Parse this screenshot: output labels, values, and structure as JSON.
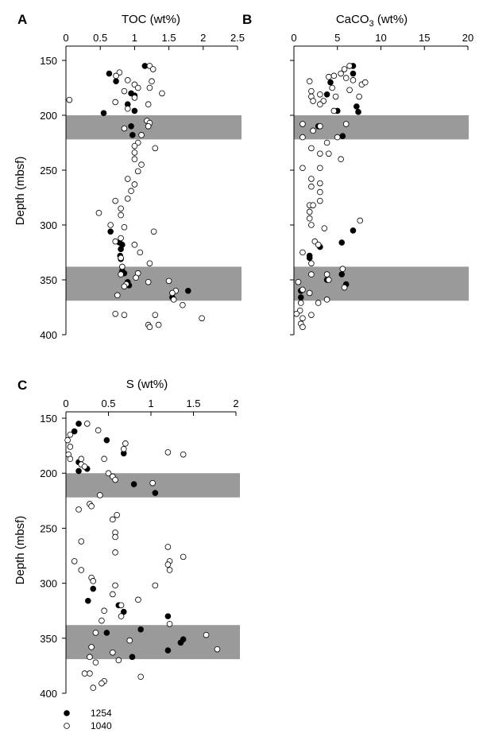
{
  "colors": {
    "band": "#9a9a9a",
    "axis": "#000000",
    "filled": "#000000",
    "open_fill": "#ffffff"
  },
  "legend": [
    {
      "label": "1254",
      "marker": "filled"
    },
    {
      "label": "1040",
      "marker": "open"
    }
  ],
  "chart_data": [
    {
      "panel": "A",
      "type": "scatter",
      "title": "TOC (wt%)",
      "xlabel": "TOC (wt%)",
      "ylabel": "Depth (mbsf)",
      "xlim": [
        0,
        2.5
      ],
      "ylim": [
        150,
        400
      ],
      "y_inverted": true,
      "x_axis_position": "top",
      "xticks": [
        "0",
        "0.5",
        "1",
        "1.5",
        "2",
        "2.5"
      ],
      "yticks": [
        "150",
        "200",
        "250",
        "300",
        "350",
        "400"
      ],
      "bands": [
        [
          200,
          222
        ],
        [
          338,
          369
        ]
      ],
      "series": [
        {
          "name": "1254",
          "marker": "filled",
          "points": [
            [
              1.15,
              155
            ],
            [
              0.63,
              162
            ],
            [
              0.73,
              169
            ],
            [
              0.95,
              180
            ],
            [
              1.0,
              182
            ],
            [
              0.9,
              190
            ],
            [
              1.0,
              196
            ],
            [
              0.55,
              198
            ],
            [
              0.95,
              210
            ],
            [
              0.97,
              218
            ],
            [
              0.65,
              306
            ],
            [
              0.78,
              316
            ],
            [
              0.82,
              318
            ],
            [
              0.8,
              322
            ],
            [
              0.79,
              328
            ],
            [
              0.8,
              331
            ],
            [
              0.82,
              342
            ],
            [
              0.85,
              344
            ],
            [
              0.9,
              352
            ],
            [
              0.92,
              355
            ],
            [
              1.78,
              360
            ],
            [
              1.55,
              366
            ]
          ]
        },
        {
          "name": "1040",
          "marker": "open",
          "points": [
            [
              1.22,
              155
            ],
            [
              1.27,
              158
            ],
            [
              0.78,
              161
            ],
            [
              0.73,
              164
            ],
            [
              0.9,
              168
            ],
            [
              1.25,
              169
            ],
            [
              1.0,
              172
            ],
            [
              1.05,
              175
            ],
            [
              1.22,
              175
            ],
            [
              0.85,
              178
            ],
            [
              1.4,
              180
            ],
            [
              1.0,
              184
            ],
            [
              0.05,
              186
            ],
            [
              0.72,
              188
            ],
            [
              1.2,
              190
            ],
            [
              0.9,
              194
            ],
            [
              1.18,
              205
            ],
            [
              1.22,
              207
            ],
            [
              1.2,
              210
            ],
            [
              0.85,
              212
            ],
            [
              1.1,
              218
            ],
            [
              1.05,
              225
            ],
            [
              1.0,
              228
            ],
            [
              1.3,
              230
            ],
            [
              1.0,
              234
            ],
            [
              1.0,
              240
            ],
            [
              1.1,
              245
            ],
            [
              1.05,
              251
            ],
            [
              0.9,
              258
            ],
            [
              1.0,
              263
            ],
            [
              0.95,
              269
            ],
            [
              0.9,
              276
            ],
            [
              0.72,
              278
            ],
            [
              0.8,
              285
            ],
            [
              0.48,
              289
            ],
            [
              0.8,
              291
            ],
            [
              0.65,
              300
            ],
            [
              0.85,
              302
            ],
            [
              1.28,
              306
            ],
            [
              0.8,
              312
            ],
            [
              0.72,
              315
            ],
            [
              1.0,
              318
            ],
            [
              1.08,
              325
            ],
            [
              0.8,
              330
            ],
            [
              1.22,
              335
            ],
            [
              0.82,
              338
            ],
            [
              1.05,
              344
            ],
            [
              0.8,
              345
            ],
            [
              1.02,
              348
            ],
            [
              1.5,
              351
            ],
            [
              1.2,
              352
            ],
            [
              0.88,
              354
            ],
            [
              0.85,
              356
            ],
            [
              1.6,
              360
            ],
            [
              1.55,
              362
            ],
            [
              0.75,
              364
            ],
            [
              1.57,
              368
            ],
            [
              1.7,
              373
            ],
            [
              0.72,
              381
            ],
            [
              0.85,
              382
            ],
            [
              1.3,
              382
            ],
            [
              1.98,
              385
            ],
            [
              1.2,
              391
            ],
            [
              1.22,
              393
            ],
            [
              1.35,
              391
            ]
          ]
        }
      ]
    },
    {
      "panel": "B",
      "type": "scatter",
      "title": "CaCO₃ (wt%)",
      "title_text": "CaCO",
      "title_subscript": "3",
      "title_suffix": " (wt%)",
      "xlabel": "CaCO₃ (wt%)",
      "ylabel": "",
      "xlim": [
        0,
        20
      ],
      "ylim": [
        150,
        400
      ],
      "y_inverted": true,
      "x_axis_position": "top",
      "xticks": [
        "0",
        "5",
        "10",
        "15",
        "20"
      ],
      "yticks": [],
      "bands": [
        [
          200,
          222
        ],
        [
          338,
          369
        ]
      ],
      "series": [
        {
          "name": "1254",
          "marker": "filled",
          "points": [
            [
              6.8,
              155
            ],
            [
              6.8,
              162
            ],
            [
              4.2,
              170
            ],
            [
              3.8,
              181
            ],
            [
              7.2,
              192
            ],
            [
              7.4,
              197
            ],
            [
              5.0,
              196
            ],
            [
              2.8,
              210
            ],
            [
              5.6,
              219
            ],
            [
              6.8,
              305
            ],
            [
              5.5,
              316
            ],
            [
              3.0,
              320
            ],
            [
              1.8,
              328
            ],
            [
              1.8,
              330
            ],
            [
              5.5,
              345
            ],
            [
              3.8,
              350
            ],
            [
              6.0,
              354
            ],
            [
              0.8,
              360
            ],
            [
              0.8,
              366
            ]
          ]
        },
        {
          "name": "1040",
          "marker": "open",
          "points": [
            [
              6.4,
              155
            ],
            [
              5.8,
              158
            ],
            [
              5.4,
              162
            ],
            [
              4.6,
              164
            ],
            [
              6.0,
              166
            ],
            [
              1.8,
              169
            ],
            [
              4.0,
              165
            ],
            [
              6.8,
              168
            ],
            [
              7.8,
              172
            ],
            [
              8.2,
              170
            ],
            [
              2.0,
              178
            ],
            [
              4.4,
              175
            ],
            [
              6.4,
              177
            ],
            [
              3.0,
              181
            ],
            [
              2.0,
              183
            ],
            [
              4.8,
              183
            ],
            [
              7.5,
              183
            ],
            [
              3.4,
              187
            ],
            [
              3.0,
              190
            ],
            [
              2.2,
              187
            ],
            [
              4.6,
              196
            ],
            [
              1.0,
              208
            ],
            [
              3.0,
              210
            ],
            [
              2.2,
              214
            ],
            [
              6.0,
              208
            ],
            [
              5.0,
              220
            ],
            [
              1.0,
              220
            ],
            [
              3.8,
              225
            ],
            [
              2.0,
              230
            ],
            [
              3.0,
              235
            ],
            [
              4.0,
              235
            ],
            [
              5.4,
              240
            ],
            [
              1.0,
              248
            ],
            [
              3.0,
              248
            ],
            [
              2.0,
              258
            ],
            [
              3.0,
              262
            ],
            [
              2.0,
              265
            ],
            [
              3.0,
              270
            ],
            [
              3.0,
              278
            ],
            [
              1.8,
              282
            ],
            [
              2.2,
              282
            ],
            [
              1.8,
              288
            ],
            [
              1.8,
              294
            ],
            [
              7.6,
              296
            ],
            [
              2.0,
              300
            ],
            [
              3.5,
              303
            ],
            [
              2.4,
              315
            ],
            [
              2.8,
              318
            ],
            [
              1.0,
              325
            ],
            [
              2.0,
              335
            ],
            [
              5.6,
              340
            ],
            [
              3.8,
              345
            ],
            [
              2.0,
              345
            ],
            [
              4.0,
              350
            ],
            [
              0.5,
              352
            ],
            [
              5.8,
              357
            ],
            [
              1.0,
              359
            ],
            [
              1.8,
              362
            ],
            [
              3.8,
              368
            ],
            [
              0.8,
              371
            ],
            [
              2.8,
              371
            ],
            [
              0.7,
              378
            ],
            [
              0.3,
              381
            ],
            [
              2.0,
              382
            ],
            [
              1.0,
              385
            ],
            [
              0.8,
              390
            ],
            [
              1.0,
              393
            ]
          ]
        }
      ]
    },
    {
      "panel": "C",
      "type": "scatter",
      "title": "S (wt%)",
      "xlabel": "S (wt%)",
      "ylabel": "Depth (mbsf)",
      "xlim": [
        0,
        2
      ],
      "ylim": [
        150,
        400
      ],
      "y_inverted": true,
      "x_axis_position": "top",
      "xticks": [
        "0",
        "0.5",
        "1",
        "1.5",
        "2"
      ],
      "yticks": [
        "150",
        "200",
        "250",
        "300",
        "350",
        "400"
      ],
      "bands": [
        [
          200,
          222
        ],
        [
          338,
          369
        ]
      ],
      "series": [
        {
          "name": "1254",
          "marker": "filled",
          "points": [
            [
              0.15,
              155
            ],
            [
              0.1,
              162
            ],
            [
              0.48,
              170
            ],
            [
              0.68,
              182
            ],
            [
              0.15,
              190
            ],
            [
              0.25,
              196
            ],
            [
              0.15,
              198
            ],
            [
              0.8,
              210
            ],
            [
              1.05,
              218
            ],
            [
              0.32,
              305
            ],
            [
              0.26,
              316
            ],
            [
              0.62,
              320
            ],
            [
              0.68,
              326
            ],
            [
              1.2,
              330
            ],
            [
              0.88,
              342
            ],
            [
              1.38,
              351
            ],
            [
              0.48,
              345
            ],
            [
              1.35,
              354
            ],
            [
              1.2,
              361
            ],
            [
              0.78,
              367
            ]
          ]
        },
        {
          "name": "1040",
          "marker": "open",
          "points": [
            [
              0.25,
              155
            ],
            [
              0.38,
              161
            ],
            [
              0.05,
              165
            ],
            [
              0.02,
              170
            ],
            [
              0.7,
              173
            ],
            [
              0.05,
              176
            ],
            [
              0.68,
              178
            ],
            [
              1.2,
              181
            ],
            [
              1.38,
              183
            ],
            [
              0.03,
              183
            ],
            [
              0.05,
              187
            ],
            [
              0.18,
              187
            ],
            [
              0.45,
              187
            ],
            [
              0.18,
              192
            ],
            [
              0.22,
              194
            ],
            [
              0.5,
              200
            ],
            [
              0.55,
              203
            ],
            [
              0.58,
              206
            ],
            [
              1.02,
              209
            ],
            [
              0.4,
              220
            ],
            [
              0.28,
              228
            ],
            [
              0.3,
              230
            ],
            [
              0.15,
              233
            ],
            [
              0.6,
              238
            ],
            [
              0.55,
              242
            ],
            [
              0.58,
              254
            ],
            [
              0.58,
              258
            ],
            [
              0.18,
              262
            ],
            [
              1.2,
              267
            ],
            [
              0.58,
              272
            ],
            [
              1.38,
              276
            ],
            [
              1.22,
              280
            ],
            [
              1.2,
              283
            ],
            [
              1.22,
              288
            ],
            [
              0.1,
              280
            ],
            [
              0.18,
              288
            ],
            [
              0.3,
              295
            ],
            [
              0.32,
              298
            ],
            [
              0.58,
              302
            ],
            [
              1.05,
              302
            ],
            [
              0.85,
              315
            ],
            [
              0.55,
              310
            ],
            [
              0.65,
              320
            ],
            [
              0.45,
              325
            ],
            [
              1.22,
              337
            ],
            [
              0.65,
              330
            ],
            [
              0.42,
              334
            ],
            [
              0.35,
              345
            ],
            [
              1.65,
              347
            ],
            [
              0.75,
              352
            ],
            [
              0.3,
              358
            ],
            [
              1.78,
              360
            ],
            [
              0.55,
              363
            ],
            [
              0.28,
              367
            ],
            [
              0.35,
              372
            ],
            [
              0.62,
              370
            ],
            [
              0.28,
              382
            ],
            [
              0.22,
              382
            ],
            [
              0.88,
              385
            ],
            [
              0.45,
              389
            ],
            [
              0.42,
              391
            ],
            [
              0.32,
              395
            ]
          ]
        }
      ]
    }
  ]
}
